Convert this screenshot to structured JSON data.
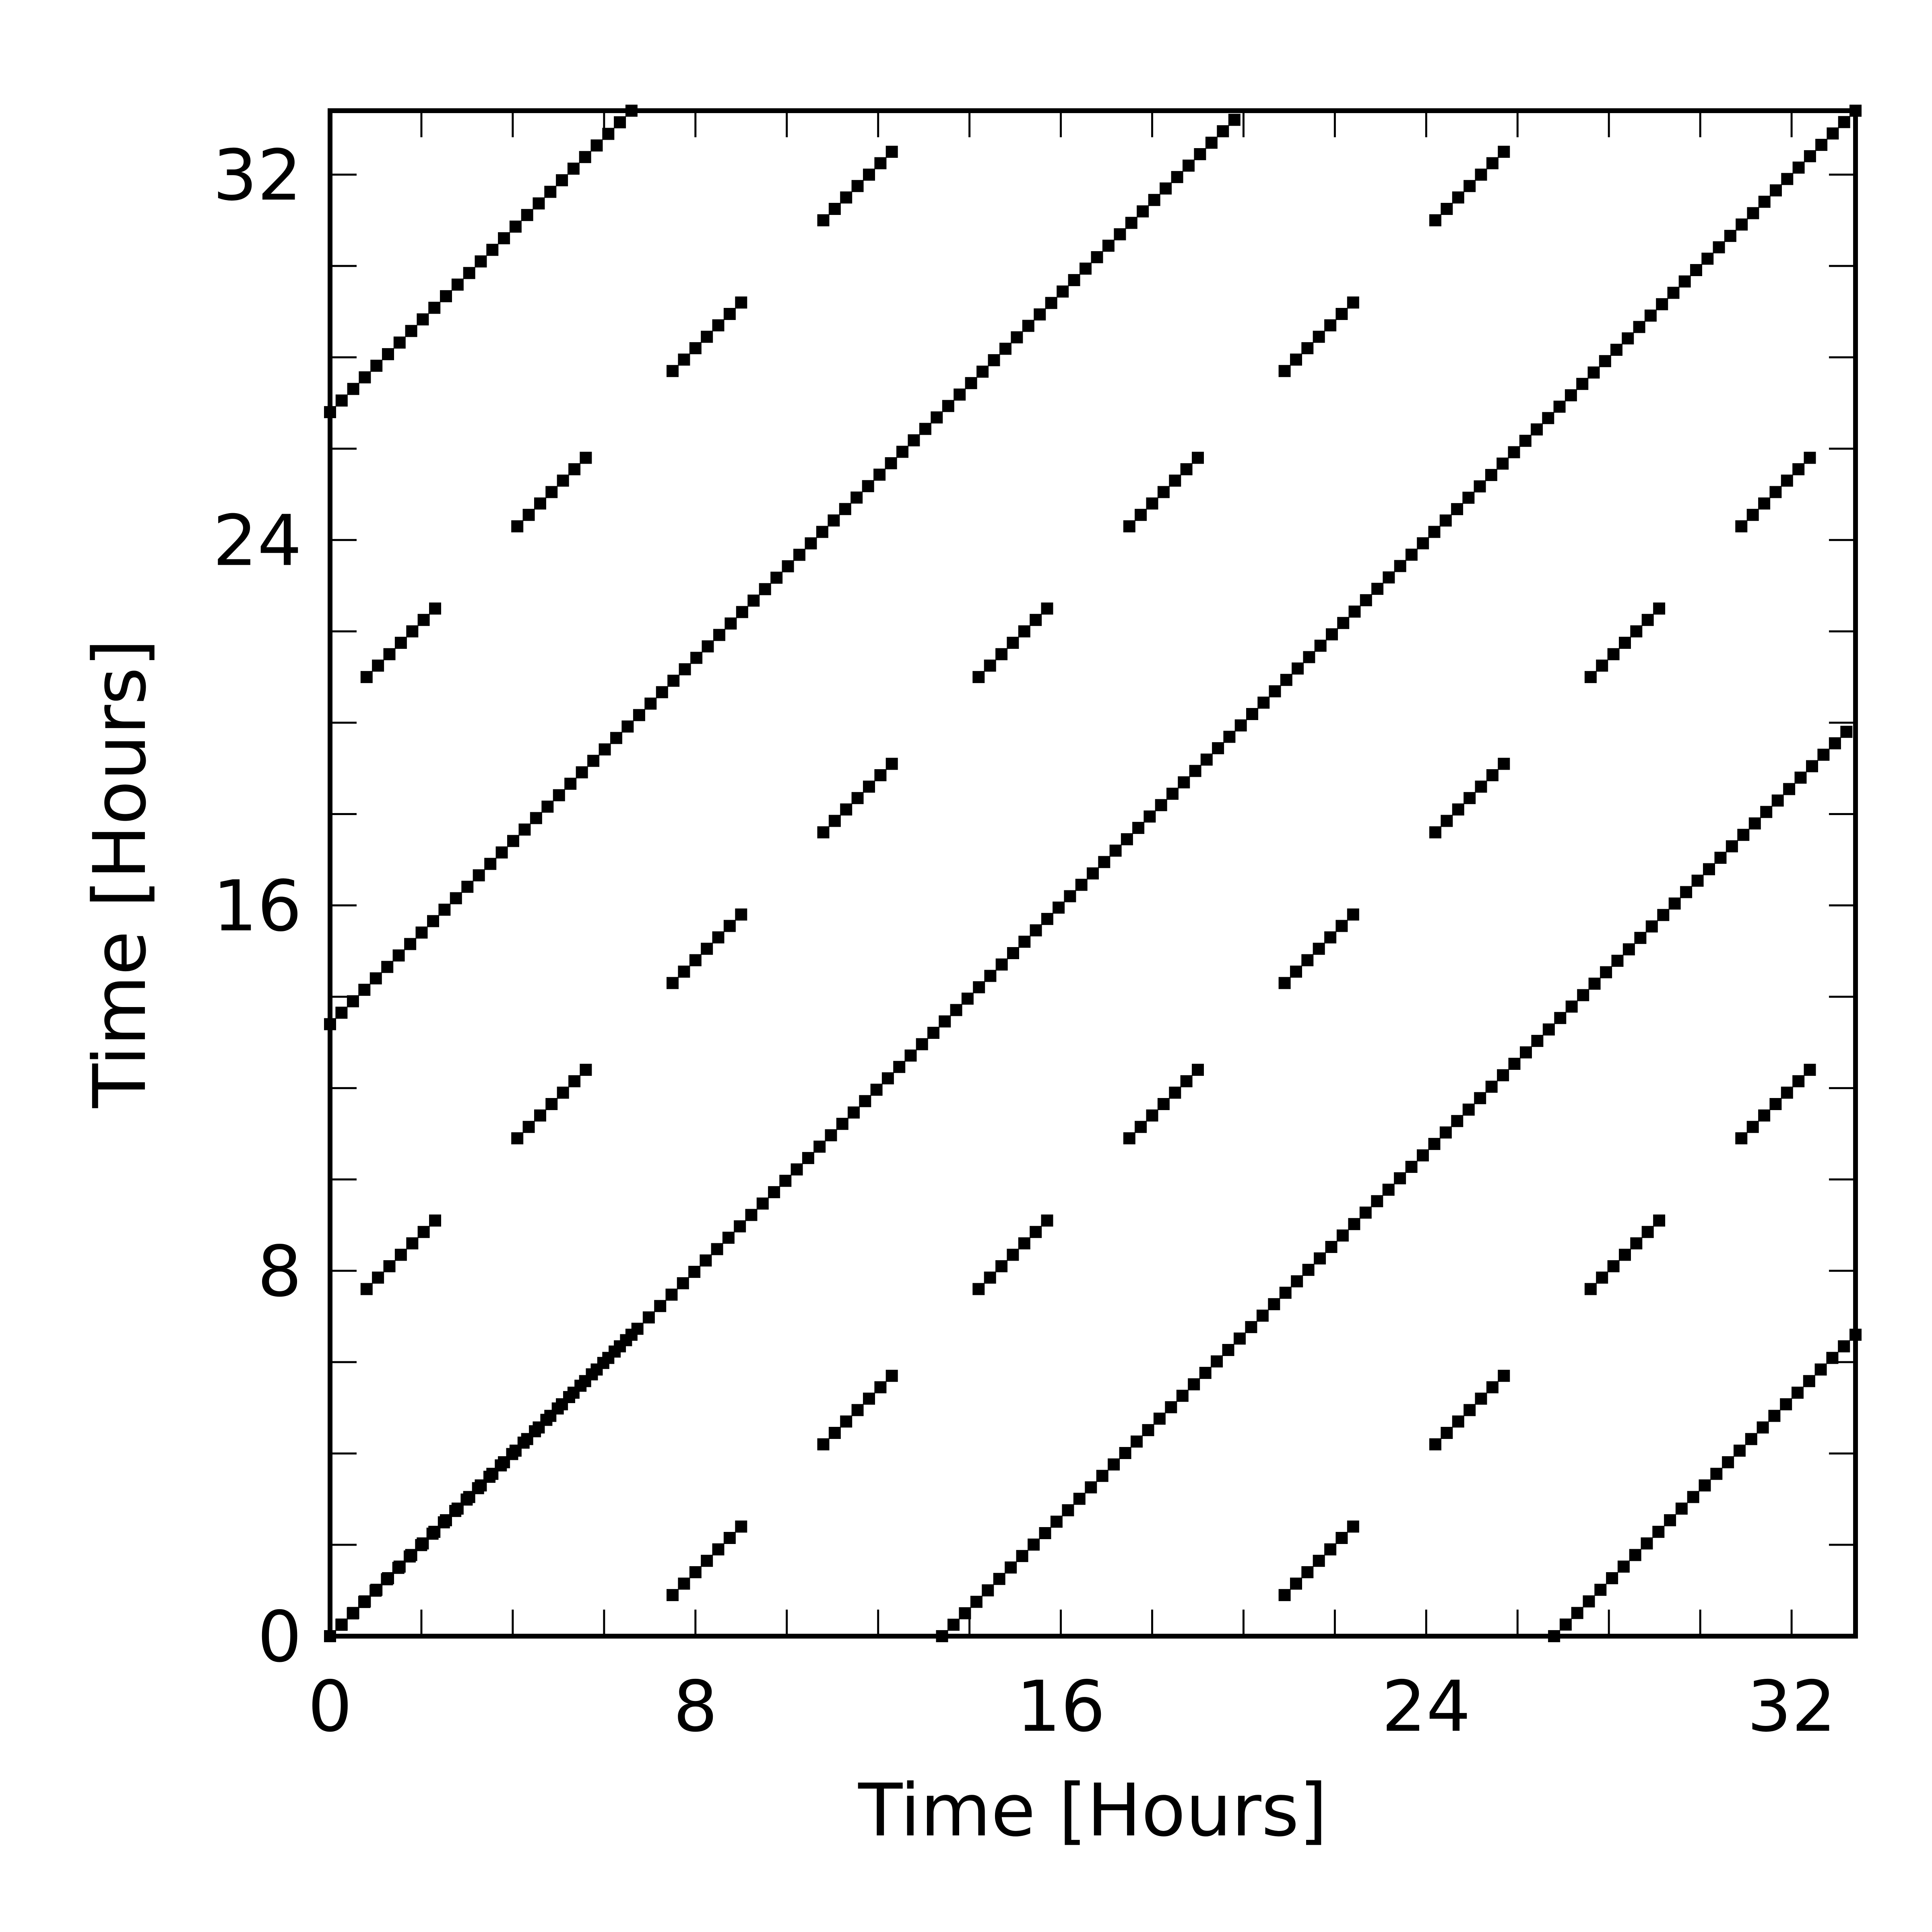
{
  "chart_data": {
    "type": "scatter",
    "title": "",
    "xlabel": "Time [Hours]",
    "ylabel": "Time [Hours]",
    "xlim": [
      0,
      33.4
    ],
    "ylim": [
      0,
      33.4
    ],
    "xticks": [
      0,
      8,
      16,
      24,
      32
    ],
    "yticks": [
      0,
      8,
      16,
      24,
      32
    ],
    "minor_tick_step": 2,
    "grid": false,
    "legend": "none",
    "marker_color": "#000000",
    "marker_step_hours": 0.25,
    "segments": [
      {
        "x": [
          0,
          6.6
        ],
        "y": [
          0,
          6.6
        ]
      },
      {
        "x": [
          0,
          19.8
        ],
        "y": [
          13.4,
          33.2
        ]
      },
      {
        "x": [
          0,
          6.6
        ],
        "y": [
          26.8,
          33.4
        ]
      },
      {
        "x": [
          13.4,
          33.2
        ],
        "y": [
          0,
          19.8
        ]
      },
      {
        "x": [
          26.8,
          33.4
        ],
        "y": [
          0,
          6.6
        ]
      },
      {
        "x": [
          0,
          33.4
        ],
        "y": [
          0,
          33.4
        ]
      },
      {
        "x": [
          7.5,
          9.0
        ],
        "y": [
          0.9,
          2.4
        ]
      },
      {
        "x": [
          20.9,
          22.4
        ],
        "y": [
          0.9,
          2.4
        ]
      },
      {
        "x": [
          10.8,
          12.3
        ],
        "y": [
          4.2,
          5.7
        ]
      },
      {
        "x": [
          24.2,
          25.7
        ],
        "y": [
          4.2,
          5.7
        ]
      },
      {
        "x": [
          0.8,
          2.3
        ],
        "y": [
          7.6,
          9.1
        ]
      },
      {
        "x": [
          14.2,
          15.7
        ],
        "y": [
          7.6,
          9.1
        ]
      },
      {
        "x": [
          27.6,
          29.1
        ],
        "y": [
          7.6,
          9.1
        ]
      },
      {
        "x": [
          4.1,
          5.6
        ],
        "y": [
          10.9,
          12.4
        ]
      },
      {
        "x": [
          17.5,
          19.0
        ],
        "y": [
          10.9,
          12.4
        ]
      },
      {
        "x": [
          30.9,
          32.4
        ],
        "y": [
          10.9,
          12.4
        ]
      },
      {
        "x": [
          7.5,
          9.0
        ],
        "y": [
          14.3,
          15.8
        ]
      },
      {
        "x": [
          20.9,
          22.4
        ],
        "y": [
          14.3,
          15.8
        ]
      },
      {
        "x": [
          10.8,
          12.3
        ],
        "y": [
          17.6,
          19.1
        ]
      },
      {
        "x": [
          24.2,
          25.7
        ],
        "y": [
          17.6,
          19.1
        ]
      },
      {
        "x": [
          0.8,
          2.3
        ],
        "y": [
          21.0,
          22.5
        ]
      },
      {
        "x": [
          14.2,
          15.7
        ],
        "y": [
          21.0,
          22.5
        ]
      },
      {
        "x": [
          27.6,
          29.1
        ],
        "y": [
          21.0,
          22.5
        ]
      },
      {
        "x": [
          4.1,
          5.6
        ],
        "y": [
          24.3,
          25.8
        ]
      },
      {
        "x": [
          17.5,
          19.0
        ],
        "y": [
          24.3,
          25.8
        ]
      },
      {
        "x": [
          30.9,
          32.4
        ],
        "y": [
          24.3,
          25.8
        ]
      },
      {
        "x": [
          7.5,
          9.0
        ],
        "y": [
          27.7,
          29.2
        ]
      },
      {
        "x": [
          20.9,
          22.4
        ],
        "y": [
          27.7,
          29.2
        ]
      },
      {
        "x": [
          10.8,
          12.3
        ],
        "y": [
          31.0,
          32.5
        ]
      },
      {
        "x": [
          24.2,
          25.7
        ],
        "y": [
          31.0,
          32.5
        ]
      }
    ]
  }
}
